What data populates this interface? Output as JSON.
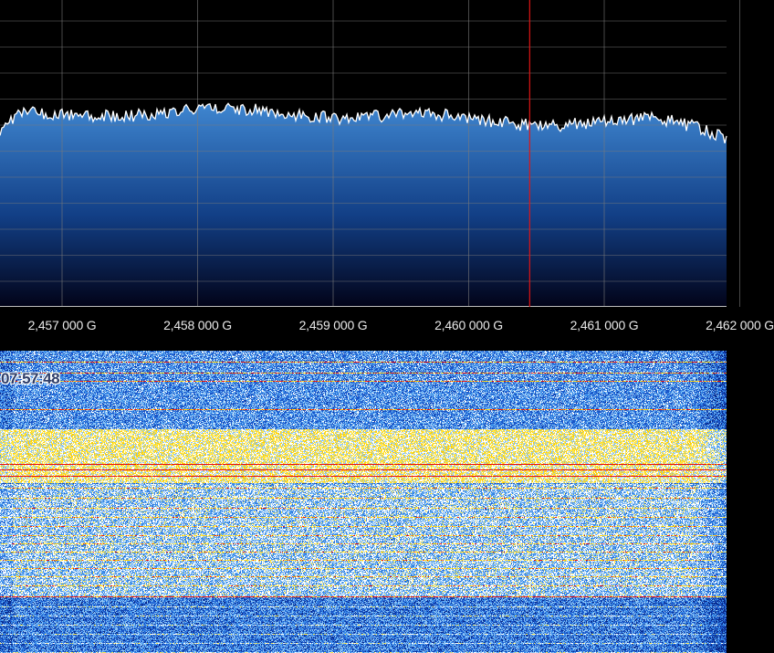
{
  "spectrum": {
    "grid_color": "#7a7a7a",
    "fill_top_color": "#3f86d0",
    "fill_bottom_color": "#020318",
    "trace_color": "#ffffff",
    "marker_color": "#e01515",
    "marker_frequency_ghz": 2.46045
  },
  "frequency_axis": {
    "ticks": [
      {
        "label": "2,457 000 G",
        "frequency_ghz": 2.457
      },
      {
        "label": "2,458 000 G",
        "frequency_ghz": 2.458
      },
      {
        "label": "2,459 000 G",
        "frequency_ghz": 2.459
      },
      {
        "label": "2,460 000 G",
        "frequency_ghz": 2.46
      },
      {
        "label": "2,461 000 G",
        "frequency_ghz": 2.461
      },
      {
        "label": "2,462 000 G",
        "frequency_ghz": 2.462
      }
    ],
    "label_color": "#e8e8e8"
  },
  "waterfall": {
    "timestamp": "07:57:48",
    "palette": [
      "#0a2a8a",
      "#1a55c8",
      "#3a8be8",
      "#8cc4f5",
      "#ffffff",
      "#ffe84a",
      "#ffd000",
      "#e81010"
    ]
  }
}
